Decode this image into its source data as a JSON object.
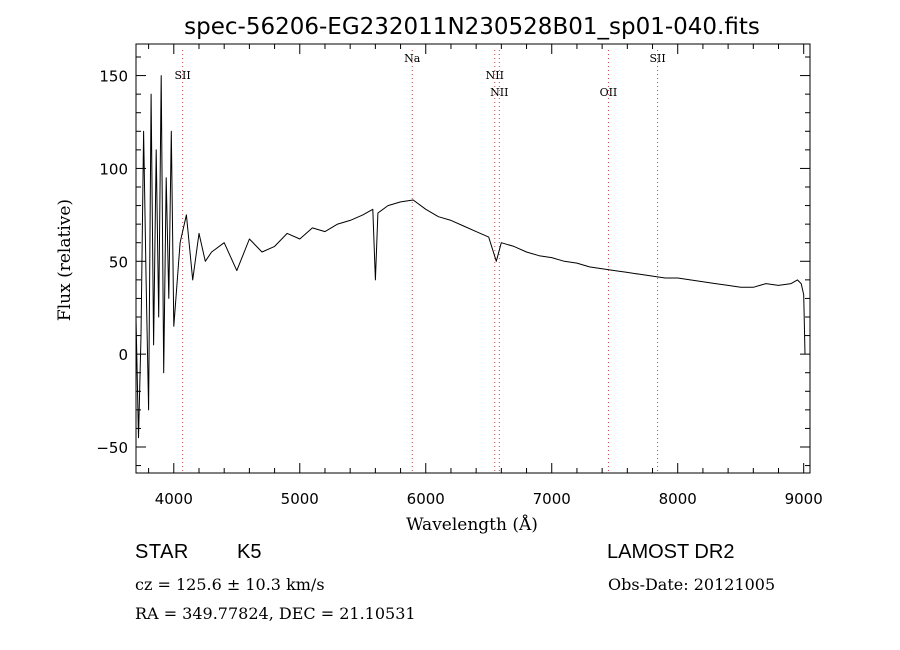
{
  "chart_data": {
    "type": "line",
    "title": "spec-56206-EG232011N230528B01_sp01-040.fits",
    "xlabel": "Wavelength (Å)",
    "ylabel": "Flux (relative)",
    "xlim": [
      3700,
      9050
    ],
    "ylim": [
      -64,
      167
    ],
    "x_ticks": [
      4000,
      5000,
      6000,
      7000,
      8000,
      9000
    ],
    "y_ticks": [
      -50,
      0,
      50,
      100,
      150
    ],
    "grid": false,
    "line_color": "#000000",
    "marker_color": "#cc4444",
    "lines": [
      {
        "label": "SII",
        "wavelength": 4070,
        "row": 1
      },
      {
        "label": "Na",
        "wavelength": 5893,
        "row": 0
      },
      {
        "label": "NII",
        "wavelength": 6548,
        "row": 1
      },
      {
        "label": "NII",
        "wavelength": 6584,
        "row": 2
      },
      {
        "label": "OII",
        "wavelength": 7450,
        "row": 2
      },
      {
        "label": "SII",
        "wavelength": 7840,
        "row": 0
      }
    ],
    "series": [
      {
        "x": [
          3700,
          3720,
          3740,
          3760,
          3780,
          3800,
          3820,
          3840,
          3860,
          3880,
          3900,
          3920,
          3940,
          3960,
          3980,
          4000,
          4050,
          4100,
          4150,
          4200,
          4250,
          4300,
          4400,
          4500,
          4600,
          4700,
          4800,
          4900,
          5000,
          5100,
          5200,
          5300,
          5400,
          5500,
          5580,
          5600,
          5620,
          5700,
          5800,
          5900,
          6000,
          6100,
          6200,
          6300,
          6400,
          6500,
          6560,
          6600,
          6700,
          6800,
          6900,
          7000,
          7100,
          7200,
          7300,
          7400,
          7500,
          7600,
          7700,
          7800,
          7900,
          8000,
          8100,
          8200,
          8300,
          8400,
          8500,
          8600,
          8700,
          8800,
          8900,
          8950,
          8980,
          9000,
          9010
        ],
        "y": [
          20,
          -45,
          10,
          120,
          40,
          -30,
          140,
          5,
          110,
          20,
          150,
          -10,
          95,
          30,
          120,
          15,
          60,
          75,
          40,
          65,
          50,
          55,
          60,
          45,
          62,
          55,
          58,
          65,
          62,
          68,
          66,
          70,
          72,
          75,
          78,
          40,
          76,
          80,
          82,
          83,
          78,
          74,
          72,
          69,
          66,
          63,
          50,
          60,
          58,
          55,
          53,
          52,
          50,
          49,
          47,
          46,
          45,
          44,
          43,
          42,
          41,
          41,
          40,
          39,
          38,
          37,
          36,
          36,
          38,
          37,
          38,
          40,
          38,
          32,
          0
        ]
      }
    ]
  },
  "footer": {
    "object_class": "STAR",
    "subclass": "K5",
    "survey": "LAMOST DR2",
    "cz": "cz = 125.6 ± 10.3 km/s",
    "obs_date": "Obs-Date: 20121005",
    "radec": "RA = 349.77824, DEC =  21.10531"
  }
}
